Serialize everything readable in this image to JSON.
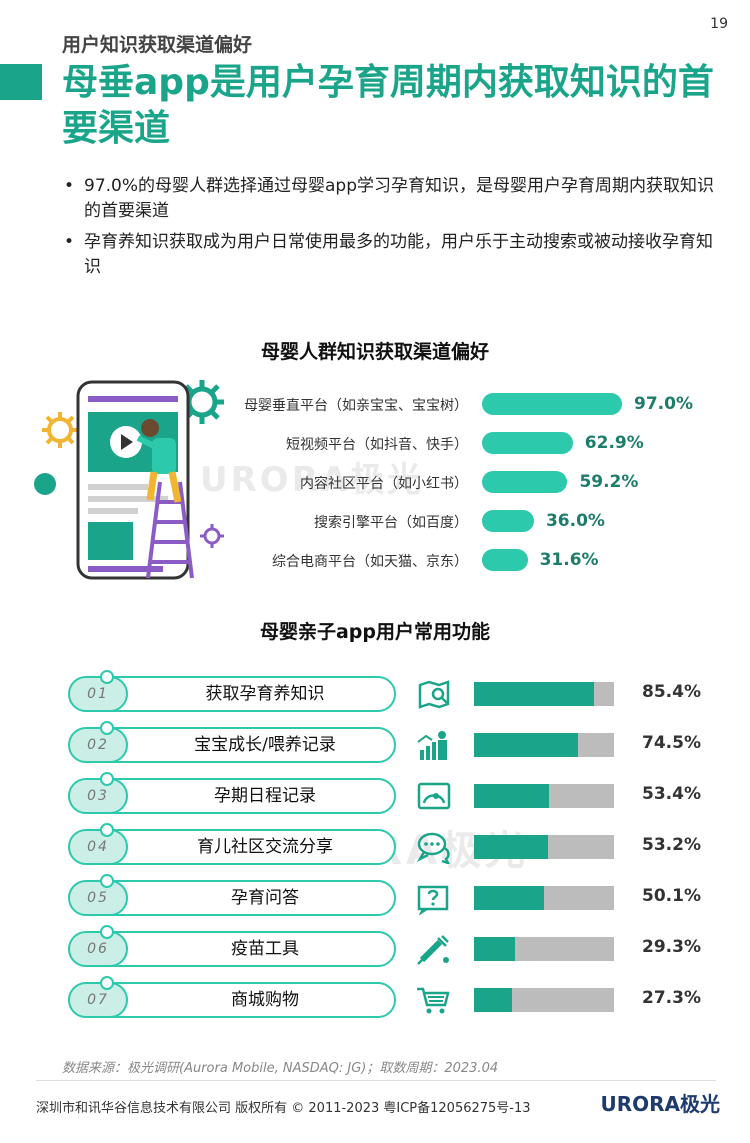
{
  "page_number": "19",
  "section_label": "用户知识获取渠道偏好",
  "main_title": "母垂app是用户孕育周期内获取知识的首要渠道",
  "bullets": [
    "97.0%的母婴人群选择通过母婴app学习孕育知识，是母婴用户孕育周期内获取知识的首要渠道",
    "孕育养知识获取成为用户日常使用最多的功能，用户乐于主动搜索或被动接收孕育知识"
  ],
  "watermark": "URORA极光",
  "chart_data": [
    {
      "type": "bar",
      "orientation": "horizontal",
      "title": "母婴人群知识获取渠道偏好",
      "unit": "%",
      "categories": [
        "母婴垂直平台（如亲宝宝、宝宝树）",
        "短视频平台（如抖音、快手）",
        "内容社区平台（如小红书）",
        "搜索引擎平台（如百度）",
        "综合电商平台（如天猫、京东）"
      ],
      "values": [
        97.0,
        62.9,
        59.2,
        36.0,
        31.6
      ],
      "value_labels": [
        "97.0%",
        "62.9%",
        "59.2%",
        "36.0%",
        "31.6%"
      ],
      "color": "#2cc9ad"
    },
    {
      "type": "bar",
      "orientation": "horizontal",
      "title": "母婴亲子app用户常用功能",
      "unit": "%",
      "ylim": [
        0,
        100
      ],
      "numbers": [
        "01",
        "02",
        "03",
        "04",
        "05",
        "06",
        "07"
      ],
      "categories": [
        "获取孕育养知识",
        "宝宝成长/喂养记录",
        "孕期日程记录",
        "育儿社区交流分享",
        "孕育问答",
        "疫苗工具",
        "商城购物"
      ],
      "icons": [
        "map-book-icon",
        "family-growth-icon",
        "ultrasound-icon",
        "chat-bubbles-icon",
        "question-card-icon",
        "syringe-icon",
        "shopping-cart-icon"
      ],
      "values": [
        85.4,
        74.5,
        53.4,
        53.2,
        50.1,
        29.3,
        27.3
      ],
      "value_labels": [
        "85.4%",
        "74.5%",
        "53.4%",
        "53.2%",
        "50.1%",
        "29.3%",
        "27.3%"
      ],
      "fill_color": "#1aa58a",
      "track_color": "#bcbcbc"
    }
  ],
  "source_note": "数据来源：极光调研(Aurora Mobile, NASDAQ: JG)；取数周期：2023.04",
  "footer_text": "深圳市和讯华谷信息技术有限公司 版权所有 © 2011-2023 粤ICP备12056275号-13",
  "footer_logo": "URORA极光"
}
